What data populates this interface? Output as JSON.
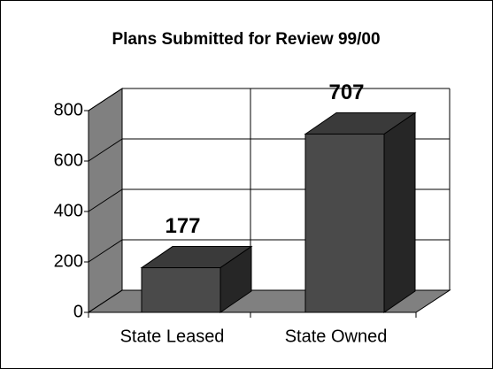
{
  "chart_data": {
    "type": "bar3d",
    "title": "Plans Submitted for Review 99/00",
    "categories": [
      "State Leased",
      "State Owned"
    ],
    "values": [
      177,
      707
    ],
    "color": "#4a4a4a",
    "ylim": [
      0,
      800
    ],
    "yticks": [
      0,
      200,
      400,
      600,
      800
    ],
    "grid": true
  }
}
